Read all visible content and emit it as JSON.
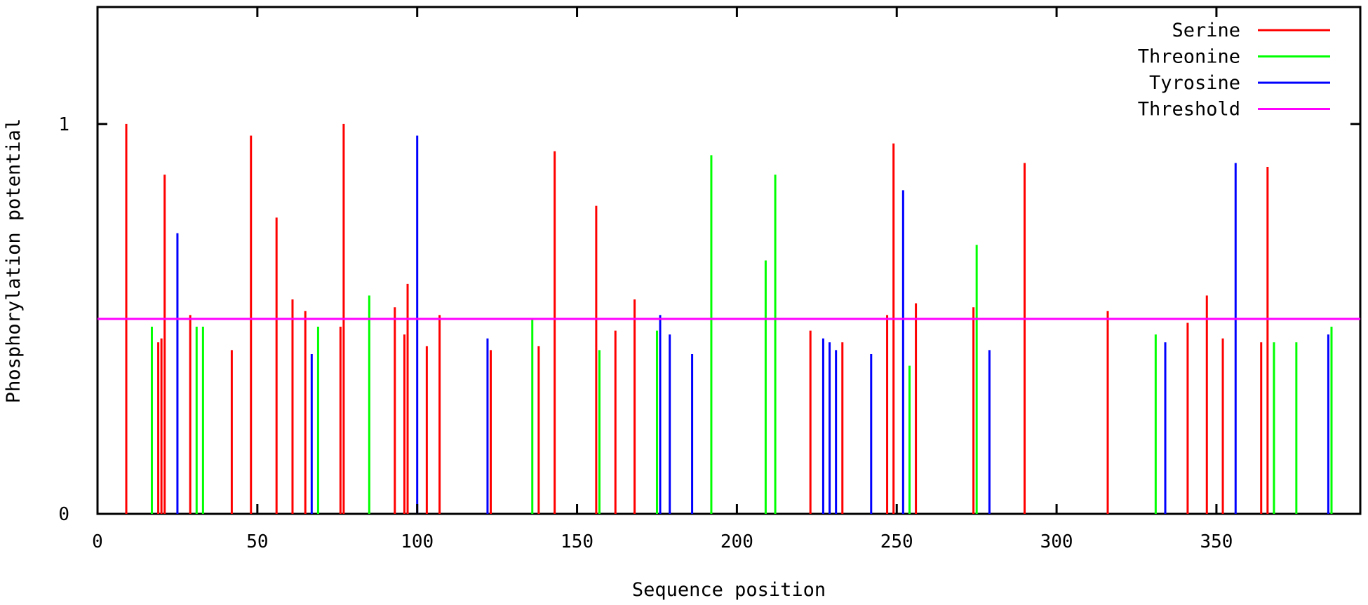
{
  "chart_data": {
    "type": "bar",
    "xlabel": "Sequence position",
    "ylabel": "Phosphorylation potential",
    "xlim": [
      0,
      395
    ],
    "ylim": [
      0,
      1.3
    ],
    "x_ticks": [
      0,
      50,
      100,
      150,
      200,
      250,
      300,
      350
    ],
    "y_ticks": [
      0,
      1
    ],
    "grid": false,
    "legend_position": "top-right",
    "threshold": {
      "name": "Threshold",
      "value": 0.5,
      "color": "#ff00ff"
    },
    "series": [
      {
        "name": "Serine",
        "color": "#ff0000",
        "points": [
          {
            "x": 9,
            "y": 1.0
          },
          {
            "x": 19,
            "y": 0.44
          },
          {
            "x": 20,
            "y": 0.45
          },
          {
            "x": 21,
            "y": 0.87
          },
          {
            "x": 29,
            "y": 0.51
          },
          {
            "x": 42,
            "y": 0.42
          },
          {
            "x": 48,
            "y": 0.97
          },
          {
            "x": 56,
            "y": 0.76
          },
          {
            "x": 61,
            "y": 0.55
          },
          {
            "x": 65,
            "y": 0.52
          },
          {
            "x": 76,
            "y": 0.48
          },
          {
            "x": 77,
            "y": 1.0
          },
          {
            "x": 93,
            "y": 0.53
          },
          {
            "x": 96,
            "y": 0.46
          },
          {
            "x": 97,
            "y": 0.59
          },
          {
            "x": 103,
            "y": 0.43
          },
          {
            "x": 107,
            "y": 0.51
          },
          {
            "x": 123,
            "y": 0.42
          },
          {
            "x": 138,
            "y": 0.43
          },
          {
            "x": 143,
            "y": 0.93
          },
          {
            "x": 156,
            "y": 0.79
          },
          {
            "x": 162,
            "y": 0.47
          },
          {
            "x": 168,
            "y": 0.55
          },
          {
            "x": 223,
            "y": 0.47
          },
          {
            "x": 233,
            "y": 0.44
          },
          {
            "x": 247,
            "y": 0.51
          },
          {
            "x": 249,
            "y": 0.95
          },
          {
            "x": 256,
            "y": 0.54
          },
          {
            "x": 274,
            "y": 0.53
          },
          {
            "x": 290,
            "y": 0.9
          },
          {
            "x": 316,
            "y": 0.52
          },
          {
            "x": 341,
            "y": 0.49
          },
          {
            "x": 347,
            "y": 0.56
          },
          {
            "x": 352,
            "y": 0.45
          },
          {
            "x": 364,
            "y": 0.44
          },
          {
            "x": 366,
            "y": 0.89
          }
        ]
      },
      {
        "name": "Threonine",
        "color": "#00ff00",
        "points": [
          {
            "x": 17,
            "y": 0.48
          },
          {
            "x": 31,
            "y": 0.48
          },
          {
            "x": 33,
            "y": 0.48
          },
          {
            "x": 69,
            "y": 0.48
          },
          {
            "x": 85,
            "y": 0.56
          },
          {
            "x": 136,
            "y": 0.5
          },
          {
            "x": 157,
            "y": 0.42
          },
          {
            "x": 175,
            "y": 0.47
          },
          {
            "x": 192,
            "y": 0.92
          },
          {
            "x": 209,
            "y": 0.65
          },
          {
            "x": 212,
            "y": 0.87
          },
          {
            "x": 254,
            "y": 0.38
          },
          {
            "x": 275,
            "y": 0.69
          },
          {
            "x": 331,
            "y": 0.46
          },
          {
            "x": 368,
            "y": 0.44
          },
          {
            "x": 375,
            "y": 0.44
          },
          {
            "x": 386,
            "y": 0.48
          }
        ]
      },
      {
        "name": "Tyrosine",
        "color": "#0000ff",
        "points": [
          {
            "x": 25,
            "y": 0.72
          },
          {
            "x": 67,
            "y": 0.41
          },
          {
            "x": 100,
            "y": 0.97
          },
          {
            "x": 122,
            "y": 0.45
          },
          {
            "x": 176,
            "y": 0.51
          },
          {
            "x": 179,
            "y": 0.46
          },
          {
            "x": 186,
            "y": 0.41
          },
          {
            "x": 227,
            "y": 0.45
          },
          {
            "x": 229,
            "y": 0.44
          },
          {
            "x": 231,
            "y": 0.42
          },
          {
            "x": 242,
            "y": 0.41
          },
          {
            "x": 252,
            "y": 0.83
          },
          {
            "x": 279,
            "y": 0.42
          },
          {
            "x": 334,
            "y": 0.44
          },
          {
            "x": 356,
            "y": 0.9
          },
          {
            "x": 385,
            "y": 0.46
          }
        ]
      }
    ]
  }
}
